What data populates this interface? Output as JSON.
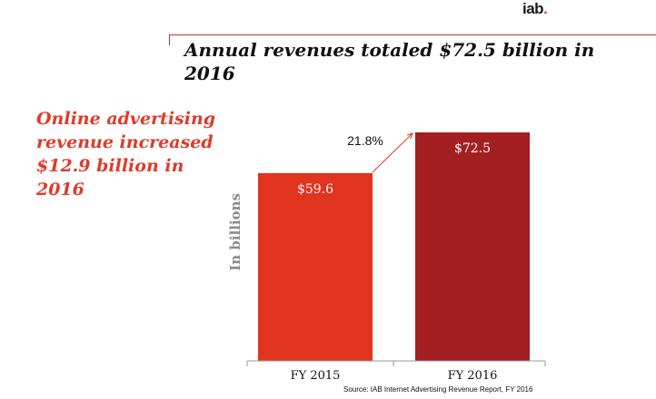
{
  "logo": {
    "text": "iab",
    "dot": "."
  },
  "title": "Annual revenues totaled $72.5 billion in 2016",
  "side_text": "Online advertising revenue increased $12.9 billion in 2016",
  "source": "Source: IAB Internet Advertising Revenue Report, FY 2016",
  "colors": {
    "accent": "#e03a2a",
    "bar_2015": "#e0341f",
    "bar_2016": "#a31f22"
  },
  "chart_data": {
    "type": "bar",
    "categories": [
      "FY 2015",
      "FY 2016"
    ],
    "values": [
      59.6,
      72.5
    ],
    "data_labels": [
      "$59.6",
      "$72.5"
    ],
    "ylabel": "In billions",
    "ylim": [
      0,
      72.5
    ],
    "growth_annotation": "21.8%",
    "grid": false
  }
}
